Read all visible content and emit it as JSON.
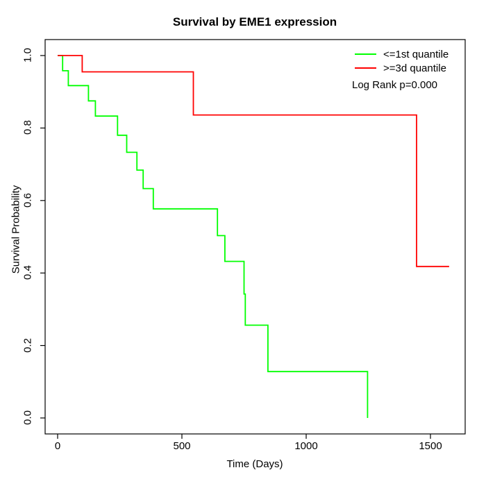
{
  "chart_data": {
    "type": "line",
    "subtype": "kaplan-meier-step",
    "title": "Survival by EME1 expression",
    "xlabel": "Time (Days)",
    "ylabel": "Survival Probability",
    "xlim": [
      0,
      1600
    ],
    "ylim": [
      0.0,
      1.0
    ],
    "x_ticks": [
      0,
      500,
      1000,
      1500
    ],
    "y_ticks": [
      0.0,
      0.2,
      0.4,
      0.6,
      0.8,
      1.0
    ],
    "x_tick_labels": [
      "0",
      "500",
      "1000",
      "1500"
    ],
    "y_tick_labels": [
      "0.0",
      "0.2",
      "0.4",
      "0.6",
      "0.8",
      "1.0"
    ],
    "grid": false,
    "legend_position": "top-right",
    "annotation": "Log Rank p=0.000",
    "axis_color": "#000000",
    "background_color": "#ffffff",
    "series": [
      {
        "name": "<=1st quantile",
        "color": "#00ff00",
        "end_time": 1247,
        "points": [
          [
            0,
            1.0
          ],
          [
            20,
            0.958
          ],
          [
            43,
            0.917
          ],
          [
            124,
            0.875
          ],
          [
            152,
            0.833
          ],
          [
            241,
            0.78
          ],
          [
            278,
            0.733
          ],
          [
            319,
            0.684
          ],
          [
            344,
            0.633
          ],
          [
            385,
            0.577
          ],
          [
            643,
            0.503
          ],
          [
            673,
            0.432
          ],
          [
            750,
            0.342
          ],
          [
            755,
            0.256
          ],
          [
            846,
            0.128
          ],
          [
            1247,
            0.0
          ]
        ]
      },
      {
        "name": ">=3d quantile",
        "color": "#ff0000",
        "end_time": 1575,
        "points": [
          [
            0,
            1.0
          ],
          [
            99,
            0.955
          ],
          [
            546,
            0.836
          ],
          [
            1444,
            0.418
          ]
        ]
      }
    ]
  }
}
